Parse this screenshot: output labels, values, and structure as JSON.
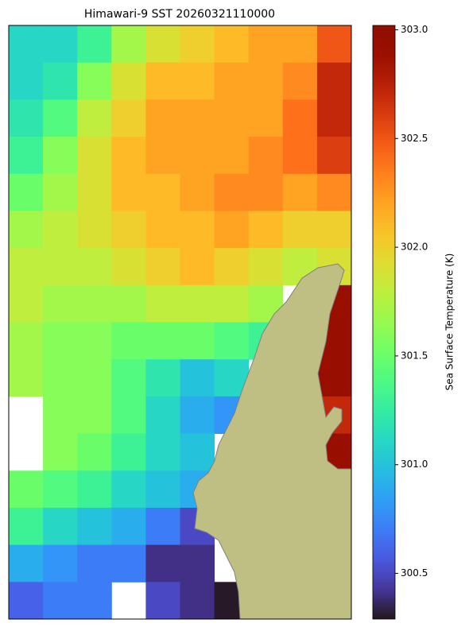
{
  "chart_data": {
    "type": "heatmap",
    "title": "Himawari-9 SST 20260321110000",
    "colorbar_label": "Sea Surface Temperature (K)",
    "colormap": "turbo",
    "clim": [
      300.29,
      303.02
    ],
    "cticks": [
      300.5,
      {
        "value": 301.0,
        "label": "301.0"
      },
      301.5,
      {
        "value": 302.0,
        "label": "302.0"
      },
      302.5,
      {
        "value": 303.0,
        "label": "303.0"
      }
    ],
    "grid_values": [
      [
        301.1,
        301.1,
        301.3,
        301.7,
        301.9,
        302.0,
        302.1,
        302.2,
        302.2,
        302.5
      ],
      [
        301.1,
        301.2,
        301.6,
        301.9,
        302.1,
        302.1,
        302.2,
        302.2,
        302.3,
        302.7
      ],
      [
        301.2,
        301.4,
        301.8,
        302.0,
        302.2,
        302.2,
        302.2,
        302.2,
        302.4,
        302.7
      ],
      [
        301.3,
        301.6,
        301.9,
        302.1,
        302.2,
        302.2,
        302.2,
        302.3,
        302.4,
        302.6
      ],
      [
        301.5,
        301.7,
        301.9,
        302.1,
        302.1,
        302.2,
        302.3,
        302.3,
        302.2,
        302.3
      ],
      [
        301.7,
        301.8,
        301.9,
        302.0,
        302.1,
        302.1,
        302.2,
        302.1,
        302.0,
        302.0
      ],
      [
        301.8,
        301.8,
        301.8,
        301.9,
        302.0,
        302.1,
        302.0,
        301.9,
        301.8,
        301.9
      ],
      [
        301.8,
        301.7,
        301.7,
        301.7,
        301.8,
        301.8,
        301.8,
        301.7,
        null,
        302.9
      ],
      [
        301.7,
        301.6,
        301.6,
        301.5,
        301.5,
        301.5,
        301.4,
        301.3,
        null,
        302.9
      ],
      [
        301.7,
        301.6,
        301.6,
        301.4,
        301.2,
        301.0,
        301.1,
        null,
        null,
        302.9
      ],
      [
        null,
        301.6,
        301.6,
        301.4,
        301.1,
        300.9,
        300.8,
        null,
        null,
        302.7
      ],
      [
        null,
        301.6,
        301.5,
        301.3,
        301.1,
        301.0,
        null,
        null,
        null,
        302.9
      ],
      [
        301.5,
        301.4,
        301.3,
        301.1,
        301.0,
        300.9,
        null,
        null,
        null,
        null
      ],
      [
        301.3,
        301.1,
        301.0,
        300.9,
        300.7,
        300.5,
        null,
        null,
        null,
        null
      ],
      [
        300.9,
        300.8,
        300.7,
        300.7,
        300.4,
        300.4,
        null,
        null,
        null,
        null
      ],
      [
        300.6,
        300.7,
        300.7,
        null,
        300.5,
        300.4,
        300.3,
        null,
        null,
        null
      ]
    ]
  }
}
